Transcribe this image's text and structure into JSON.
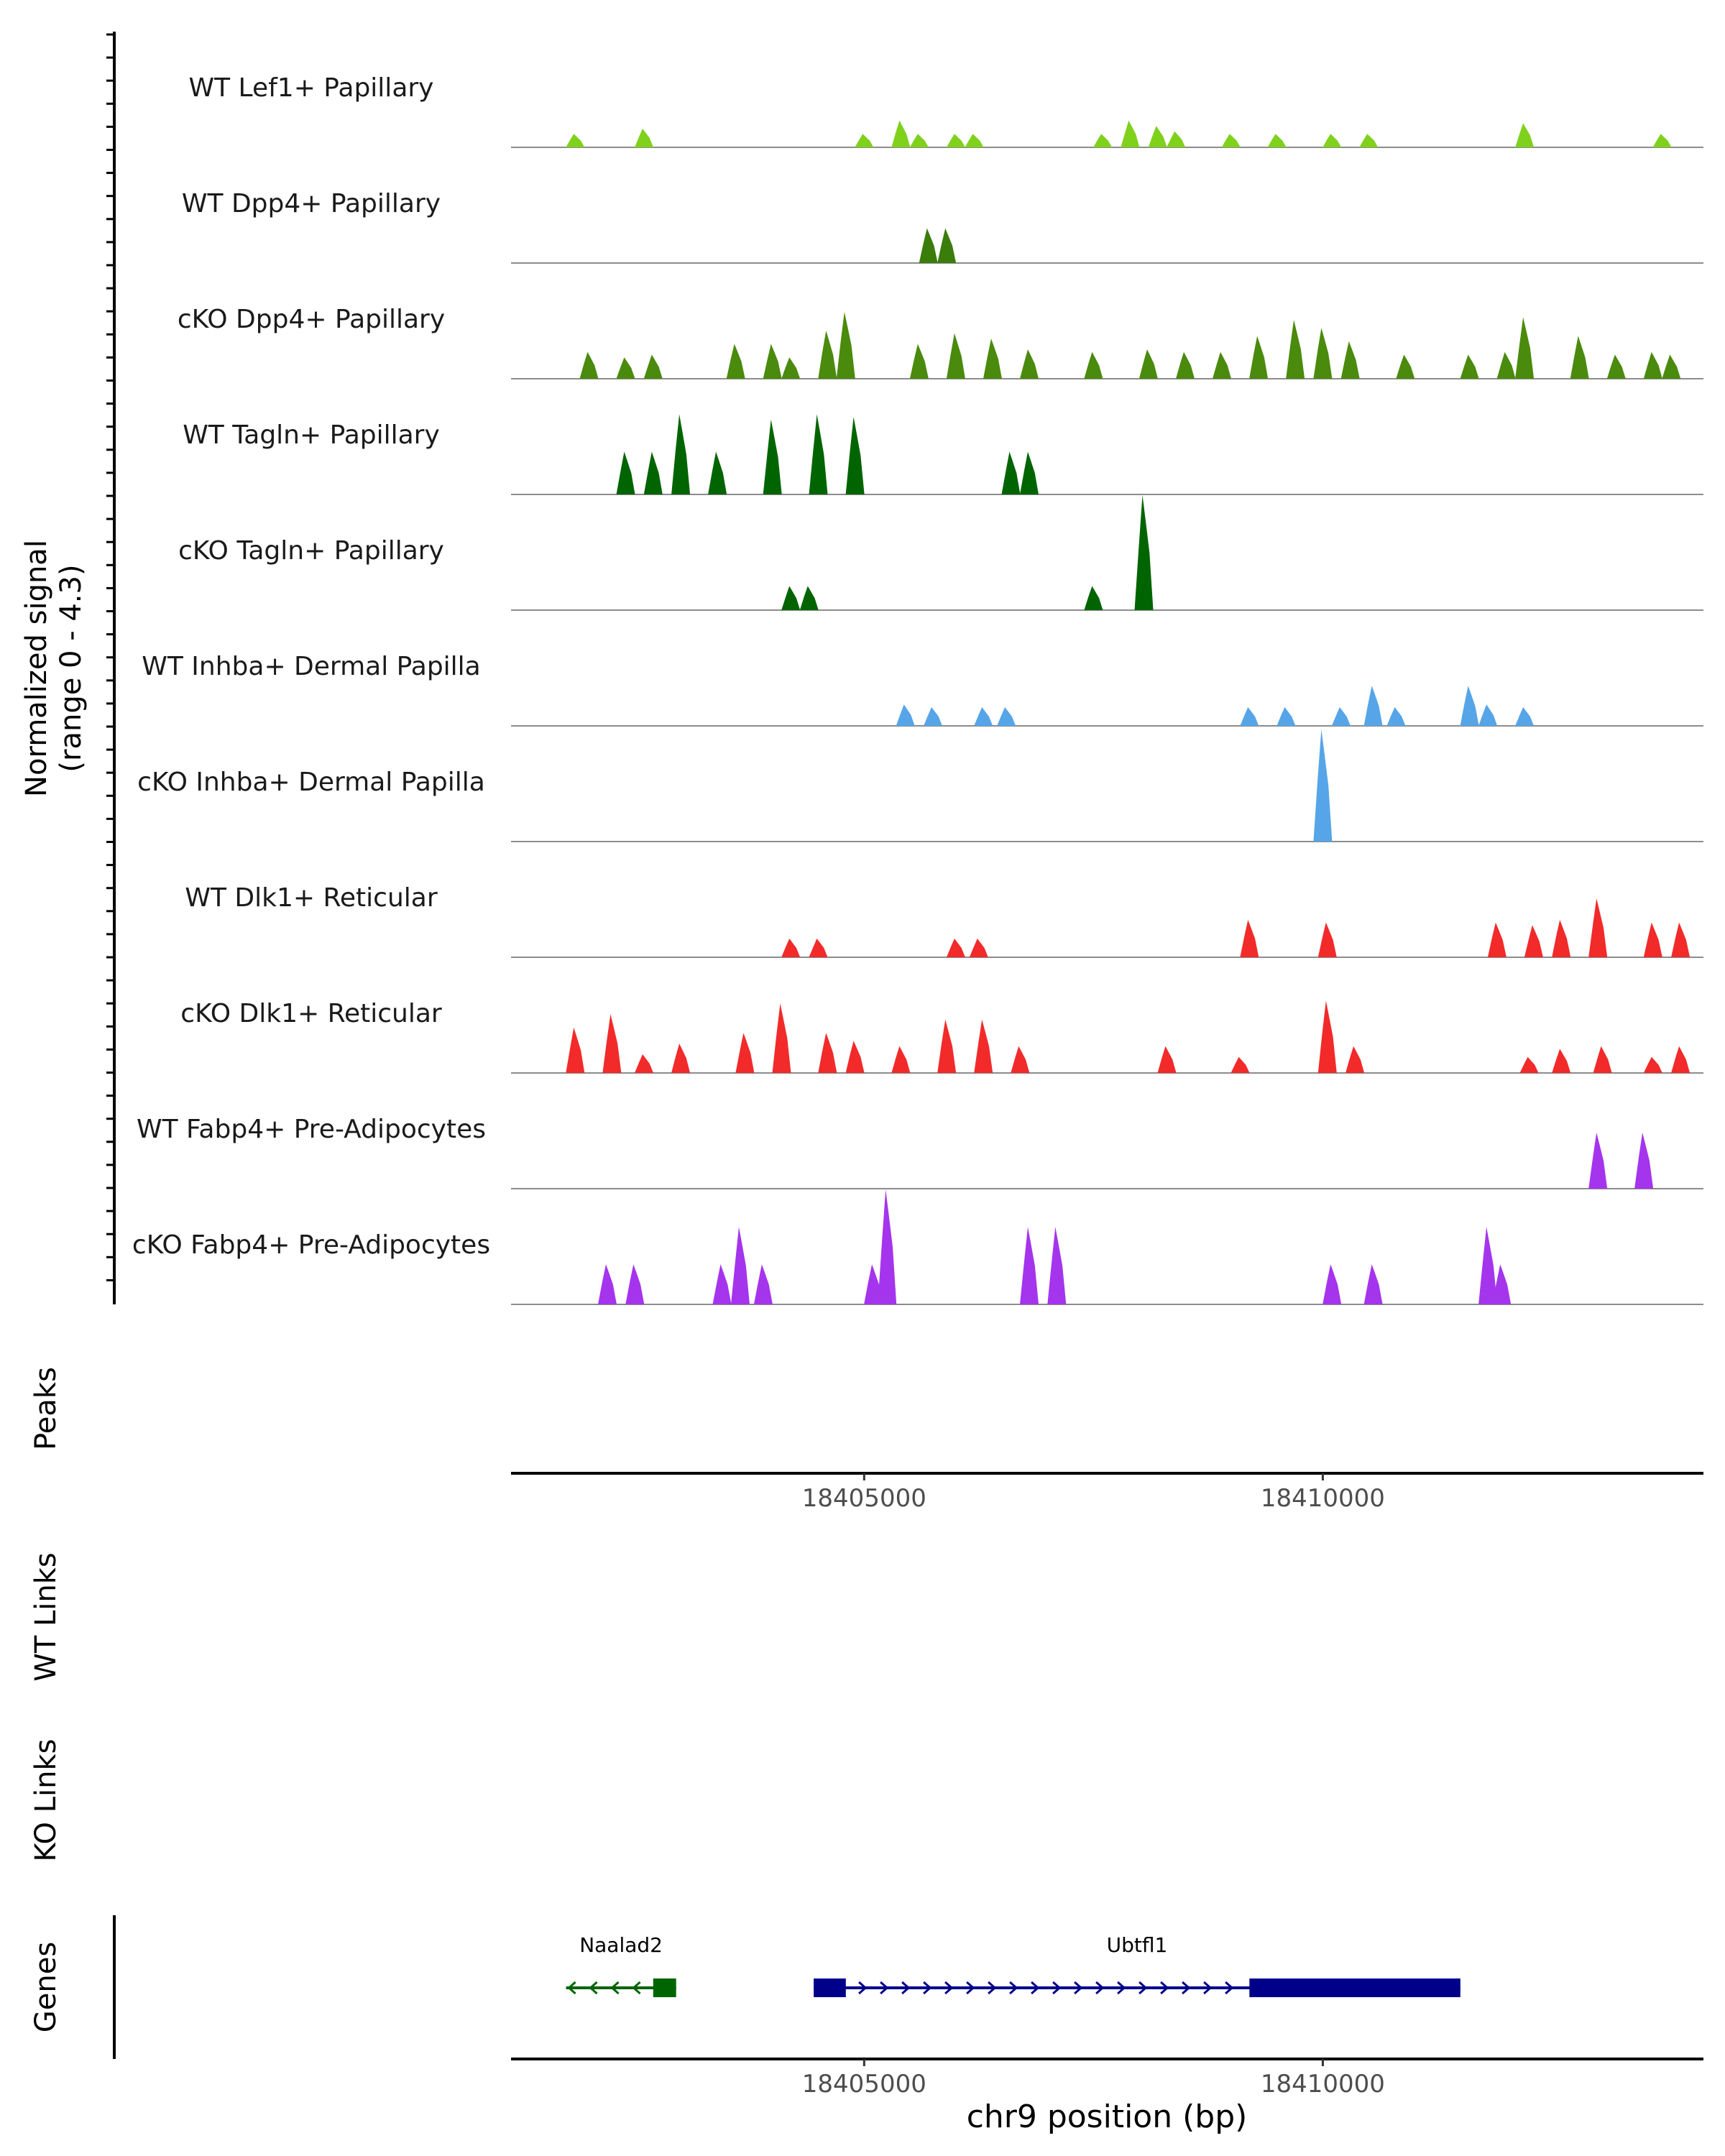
{
  "chart_data": {
    "type": "coverage",
    "title": "",
    "chromosome": "chr9",
    "region": [
      18401150,
      18414150
    ],
    "xlabel": "chr9 position (bp)",
    "x_ticks": [
      18405000,
      18410000
    ],
    "signal_axis": {
      "label_line1": "Normalized signal",
      "label_line2": "(range 0 - 4.3)",
      "range": [
        0,
        4.3
      ]
    },
    "panel_labels": {
      "peaks": "Peaks",
      "wt_links": "WT Links",
      "ko_links": "KO Links",
      "genes": "Genes"
    },
    "tracks": [
      {
        "label": "WT Lef1+ Papillary",
        "color": "#7fd11b",
        "peaks": [
          [
            18401850,
            0.5
          ],
          [
            18402600,
            0.7
          ],
          [
            18405000,
            0.5
          ],
          [
            18405400,
            1.0
          ],
          [
            18405600,
            0.5
          ],
          [
            18406000,
            0.5
          ],
          [
            18406200,
            0.5
          ],
          [
            18407600,
            0.5
          ],
          [
            18407900,
            1.0
          ],
          [
            18408200,
            0.8
          ],
          [
            18408400,
            0.6
          ],
          [
            18409000,
            0.5
          ],
          [
            18409500,
            0.5
          ],
          [
            18410100,
            0.5
          ],
          [
            18410500,
            0.5
          ],
          [
            18412200,
            0.9
          ],
          [
            18413700,
            0.5
          ]
        ]
      },
      {
        "label": "WT Dpp4+ Papillary",
        "color": "#3a7d0a",
        "peaks": [
          [
            18405700,
            1.3
          ],
          [
            18405900,
            1.3
          ]
        ]
      },
      {
        "label": "cKO Dpp4+ Papillary",
        "color": "#4a8a0c",
        "peaks": [
          [
            18402000,
            1.0
          ],
          [
            18402400,
            0.8
          ],
          [
            18402700,
            0.9
          ],
          [
            18403600,
            1.3
          ],
          [
            18404000,
            1.3
          ],
          [
            18404200,
            0.8
          ],
          [
            18404600,
            1.8
          ],
          [
            18404800,
            2.5
          ],
          [
            18405600,
            1.3
          ],
          [
            18406000,
            1.7
          ],
          [
            18406400,
            1.5
          ],
          [
            18406800,
            1.1
          ],
          [
            18407500,
            1.0
          ],
          [
            18408100,
            1.1
          ],
          [
            18408500,
            1.0
          ],
          [
            18408900,
            1.0
          ],
          [
            18409300,
            1.6
          ],
          [
            18409700,
            2.2
          ],
          [
            18410000,
            1.9
          ],
          [
            18410300,
            1.4
          ],
          [
            18410900,
            0.9
          ],
          [
            18411600,
            0.9
          ],
          [
            18412000,
            1.0
          ],
          [
            18412200,
            2.3
          ],
          [
            18412800,
            1.6
          ],
          [
            18413200,
            0.9
          ],
          [
            18413600,
            1.0
          ],
          [
            18413800,
            0.9
          ]
        ]
      },
      {
        "label": "WT Tagln+ Papillary",
        "color": "#006400",
        "peaks": [
          [
            18402400,
            1.6
          ],
          [
            18402700,
            1.6
          ],
          [
            18403000,
            3.0
          ],
          [
            18403400,
            1.6
          ],
          [
            18404000,
            2.8
          ],
          [
            18404500,
            3.0
          ],
          [
            18404900,
            2.9
          ],
          [
            18406600,
            1.6
          ],
          [
            18406800,
            1.6
          ]
        ]
      },
      {
        "label": "cKO Tagln+ Papillary",
        "color": "#006400",
        "peaks": [
          [
            18404200,
            0.9
          ],
          [
            18404400,
            0.9
          ],
          [
            18407500,
            0.9
          ],
          [
            18408050,
            4.3
          ]
        ]
      },
      {
        "label": "WT Inhba+ Dermal Papilla",
        "color": "#56a5e8",
        "peaks": [
          [
            18405450,
            0.8
          ],
          [
            18405750,
            0.7
          ],
          [
            18406300,
            0.7
          ],
          [
            18406550,
            0.7
          ],
          [
            18409200,
            0.7
          ],
          [
            18409600,
            0.7
          ],
          [
            18410200,
            0.7
          ],
          [
            18410550,
            1.5
          ],
          [
            18410800,
            0.7
          ],
          [
            18411600,
            1.5
          ],
          [
            18411800,
            0.8
          ],
          [
            18412200,
            0.7
          ]
        ]
      },
      {
        "label": "cKO Inhba+ Dermal Papilla",
        "color": "#56a5e8",
        "peaks": [
          [
            18410000,
            4.2
          ]
        ]
      },
      {
        "label": "WT Dlk1+ Reticular",
        "color": "#f22a2a",
        "peaks": [
          [
            18404200,
            0.7
          ],
          [
            18404500,
            0.7
          ],
          [
            18406000,
            0.7
          ],
          [
            18406250,
            0.7
          ],
          [
            18409200,
            1.4
          ],
          [
            18410050,
            1.3
          ],
          [
            18411900,
            1.3
          ],
          [
            18412300,
            1.2
          ],
          [
            18412600,
            1.4
          ],
          [
            18413000,
            2.2
          ],
          [
            18413600,
            1.3
          ],
          [
            18413900,
            1.3
          ]
        ]
      },
      {
        "label": "cKO Dlk1+ Reticular",
        "color": "#f22a2a",
        "peaks": [
          [
            18401850,
            1.7
          ],
          [
            18402250,
            2.2
          ],
          [
            18402600,
            0.7
          ],
          [
            18403000,
            1.1
          ],
          [
            18403700,
            1.5
          ],
          [
            18404100,
            2.6
          ],
          [
            18404600,
            1.5
          ],
          [
            18404900,
            1.2
          ],
          [
            18405400,
            1.0
          ],
          [
            18405900,
            2.0
          ],
          [
            18406300,
            2.0
          ],
          [
            18406700,
            1.0
          ],
          [
            18408300,
            1.0
          ],
          [
            18409100,
            0.6
          ],
          [
            18410050,
            2.7
          ],
          [
            18410350,
            1.0
          ],
          [
            18412250,
            0.6
          ],
          [
            18412600,
            0.9
          ],
          [
            18413050,
            1.0
          ],
          [
            18413600,
            0.6
          ],
          [
            18413900,
            1.0
          ]
        ]
      },
      {
        "label": "WT Fabp4+ Pre-Adipocytes",
        "color": "#a534ed",
        "peaks": [
          [
            18413000,
            2.1
          ],
          [
            18413500,
            2.1
          ]
        ]
      },
      {
        "label": "cKO Fabp4+ Pre-Adipocytes",
        "color": "#a534ed",
        "peaks": [
          [
            18402200,
            1.5
          ],
          [
            18402500,
            1.5
          ],
          [
            18403450,
            1.5
          ],
          [
            18403650,
            2.9
          ],
          [
            18403900,
            1.5
          ],
          [
            18405100,
            1.5
          ],
          [
            18405250,
            4.3
          ],
          [
            18406800,
            2.9
          ],
          [
            18407100,
            2.9
          ],
          [
            18410100,
            1.5
          ],
          [
            18410550,
            1.5
          ],
          [
            18411800,
            2.9
          ],
          [
            18411950,
            1.5
          ]
        ]
      }
    ],
    "genes": [
      {
        "name": "Naalad2",
        "strand": "-",
        "color": "#006400",
        "start": 18401750,
        "end": 18402950,
        "exons": [
          [
            18402700,
            18402950
          ]
        ]
      },
      {
        "name": "Ubtfl1",
        "strand": "+",
        "color": "#00008b",
        "start": 18404450,
        "end": 18411500,
        "exons": [
          [
            18404450,
            18404800
          ],
          [
            18409200,
            18411500
          ]
        ]
      }
    ]
  }
}
